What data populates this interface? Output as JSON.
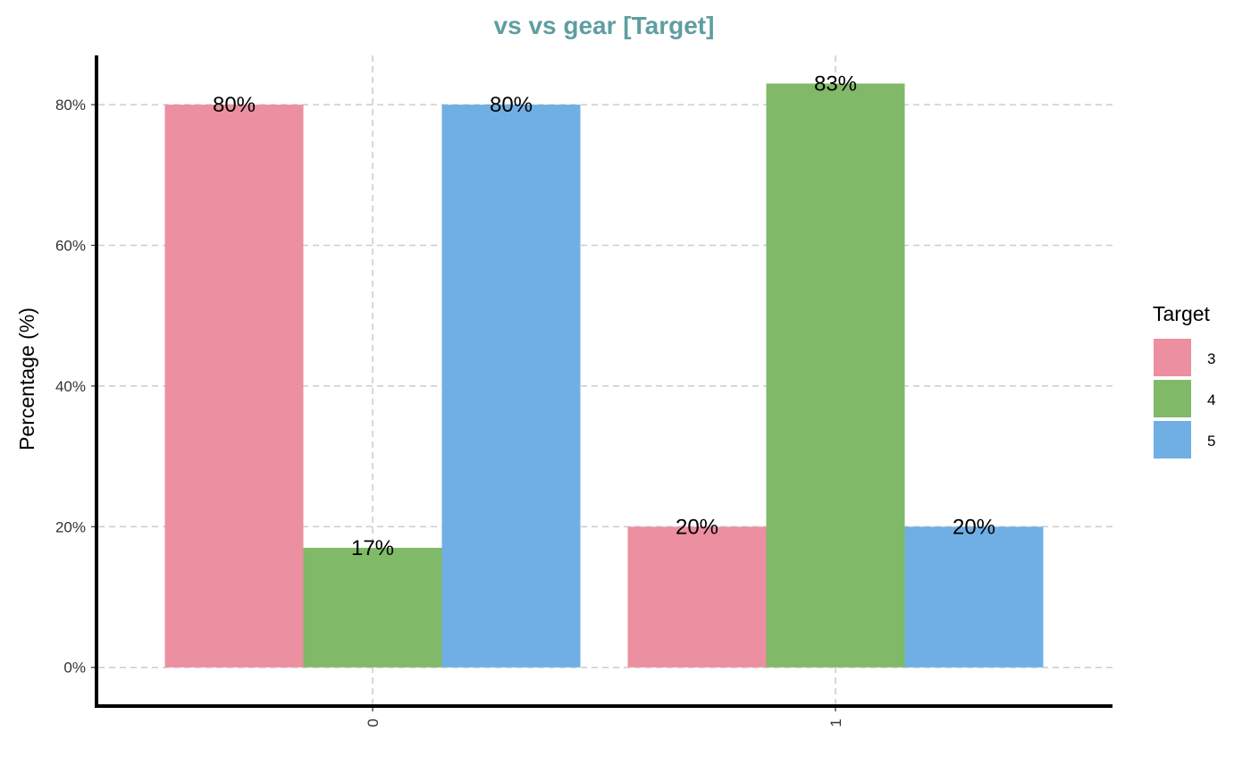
{
  "chart_data": {
    "type": "bar",
    "title": "vs vs gear [Target]",
    "xlabel": "",
    "ylabel": "Percentage (%)",
    "categories": [
      "0",
      "1"
    ],
    "series": [
      {
        "name": "3",
        "values": [
          80,
          20
        ],
        "labels": [
          "80%",
          "20%"
        ],
        "color": "#EC8FA0"
      },
      {
        "name": "4",
        "values": [
          17,
          83
        ],
        "labels": [
          "17%",
          "83%"
        ],
        "color": "#80B967"
      },
      {
        "name": "5",
        "values": [
          80,
          20
        ],
        "labels": [
          "80%",
          "20%"
        ],
        "color": "#6FAFE4"
      }
    ],
    "yticks": [
      0,
      20,
      40,
      60,
      80
    ],
    "ytick_labels": [
      "0%",
      "20%",
      "40%",
      "60%",
      "80%"
    ],
    "ylim": [
      -5.5,
      87
    ],
    "grid": true,
    "legend": {
      "title": "Target",
      "position": "right"
    },
    "colors": {
      "title": "#5F9EA0",
      "grid": "#CCCCCC",
      "axis": "#000000"
    }
  }
}
